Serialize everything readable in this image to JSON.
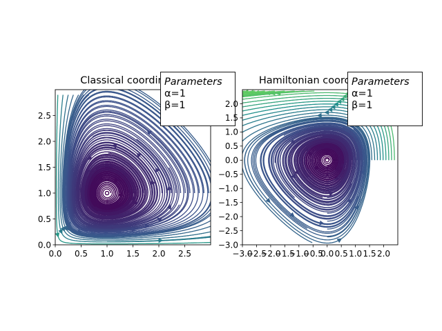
{
  "chart_data": [
    {
      "type": "streamplot",
      "title": "Classical coordinates",
      "xlabel": "",
      "ylabel": "",
      "xlim": [
        0,
        3
      ],
      "ylim": [
        0,
        3
      ],
      "x_ticks": [
        "0.0",
        "0.5",
        "1.0",
        "1.5",
        "2.0",
        "2.5"
      ],
      "y_ticks": [
        "0.0",
        "0.5",
        "1.0",
        "1.5",
        "2.0",
        "2.5"
      ],
      "fixed_point": [
        1,
        1
      ],
      "colormap": [
        "#440154",
        "#3b528b",
        "#21918c",
        "#5ec962"
      ],
      "legend": {
        "title": "Parameters",
        "lines": [
          "α=1",
          "β=1"
        ],
        "position": "top-right"
      }
    },
    {
      "type": "streamplot",
      "title": "Hamiltonian coordinates",
      "xlabel": "",
      "ylabel": "",
      "xlim": [
        -3,
        2.5
      ],
      "ylim": [
        -3,
        2.5
      ],
      "x_ticks": [
        "−3.0",
        "−2.5",
        "−2.0",
        "−1.5",
        "−1.0",
        "−0.5",
        "0.0",
        "0.5",
        "1.0",
        "1.5",
        "2.0"
      ],
      "y_ticks": [
        "−3.0",
        "−2.5",
        "−2.0",
        "−1.5",
        "−1.0",
        "−0.5",
        "0.0",
        "0.5",
        "1.0",
        "1.5",
        "2.0"
      ],
      "fixed_point": [
        0,
        0
      ],
      "colormap": [
        "#440154",
        "#3b528b",
        "#21918c",
        "#5ec962"
      ],
      "legend": {
        "title": "Parameters",
        "lines": [
          "α=1",
          "β=1"
        ],
        "position": "top-right"
      }
    }
  ]
}
